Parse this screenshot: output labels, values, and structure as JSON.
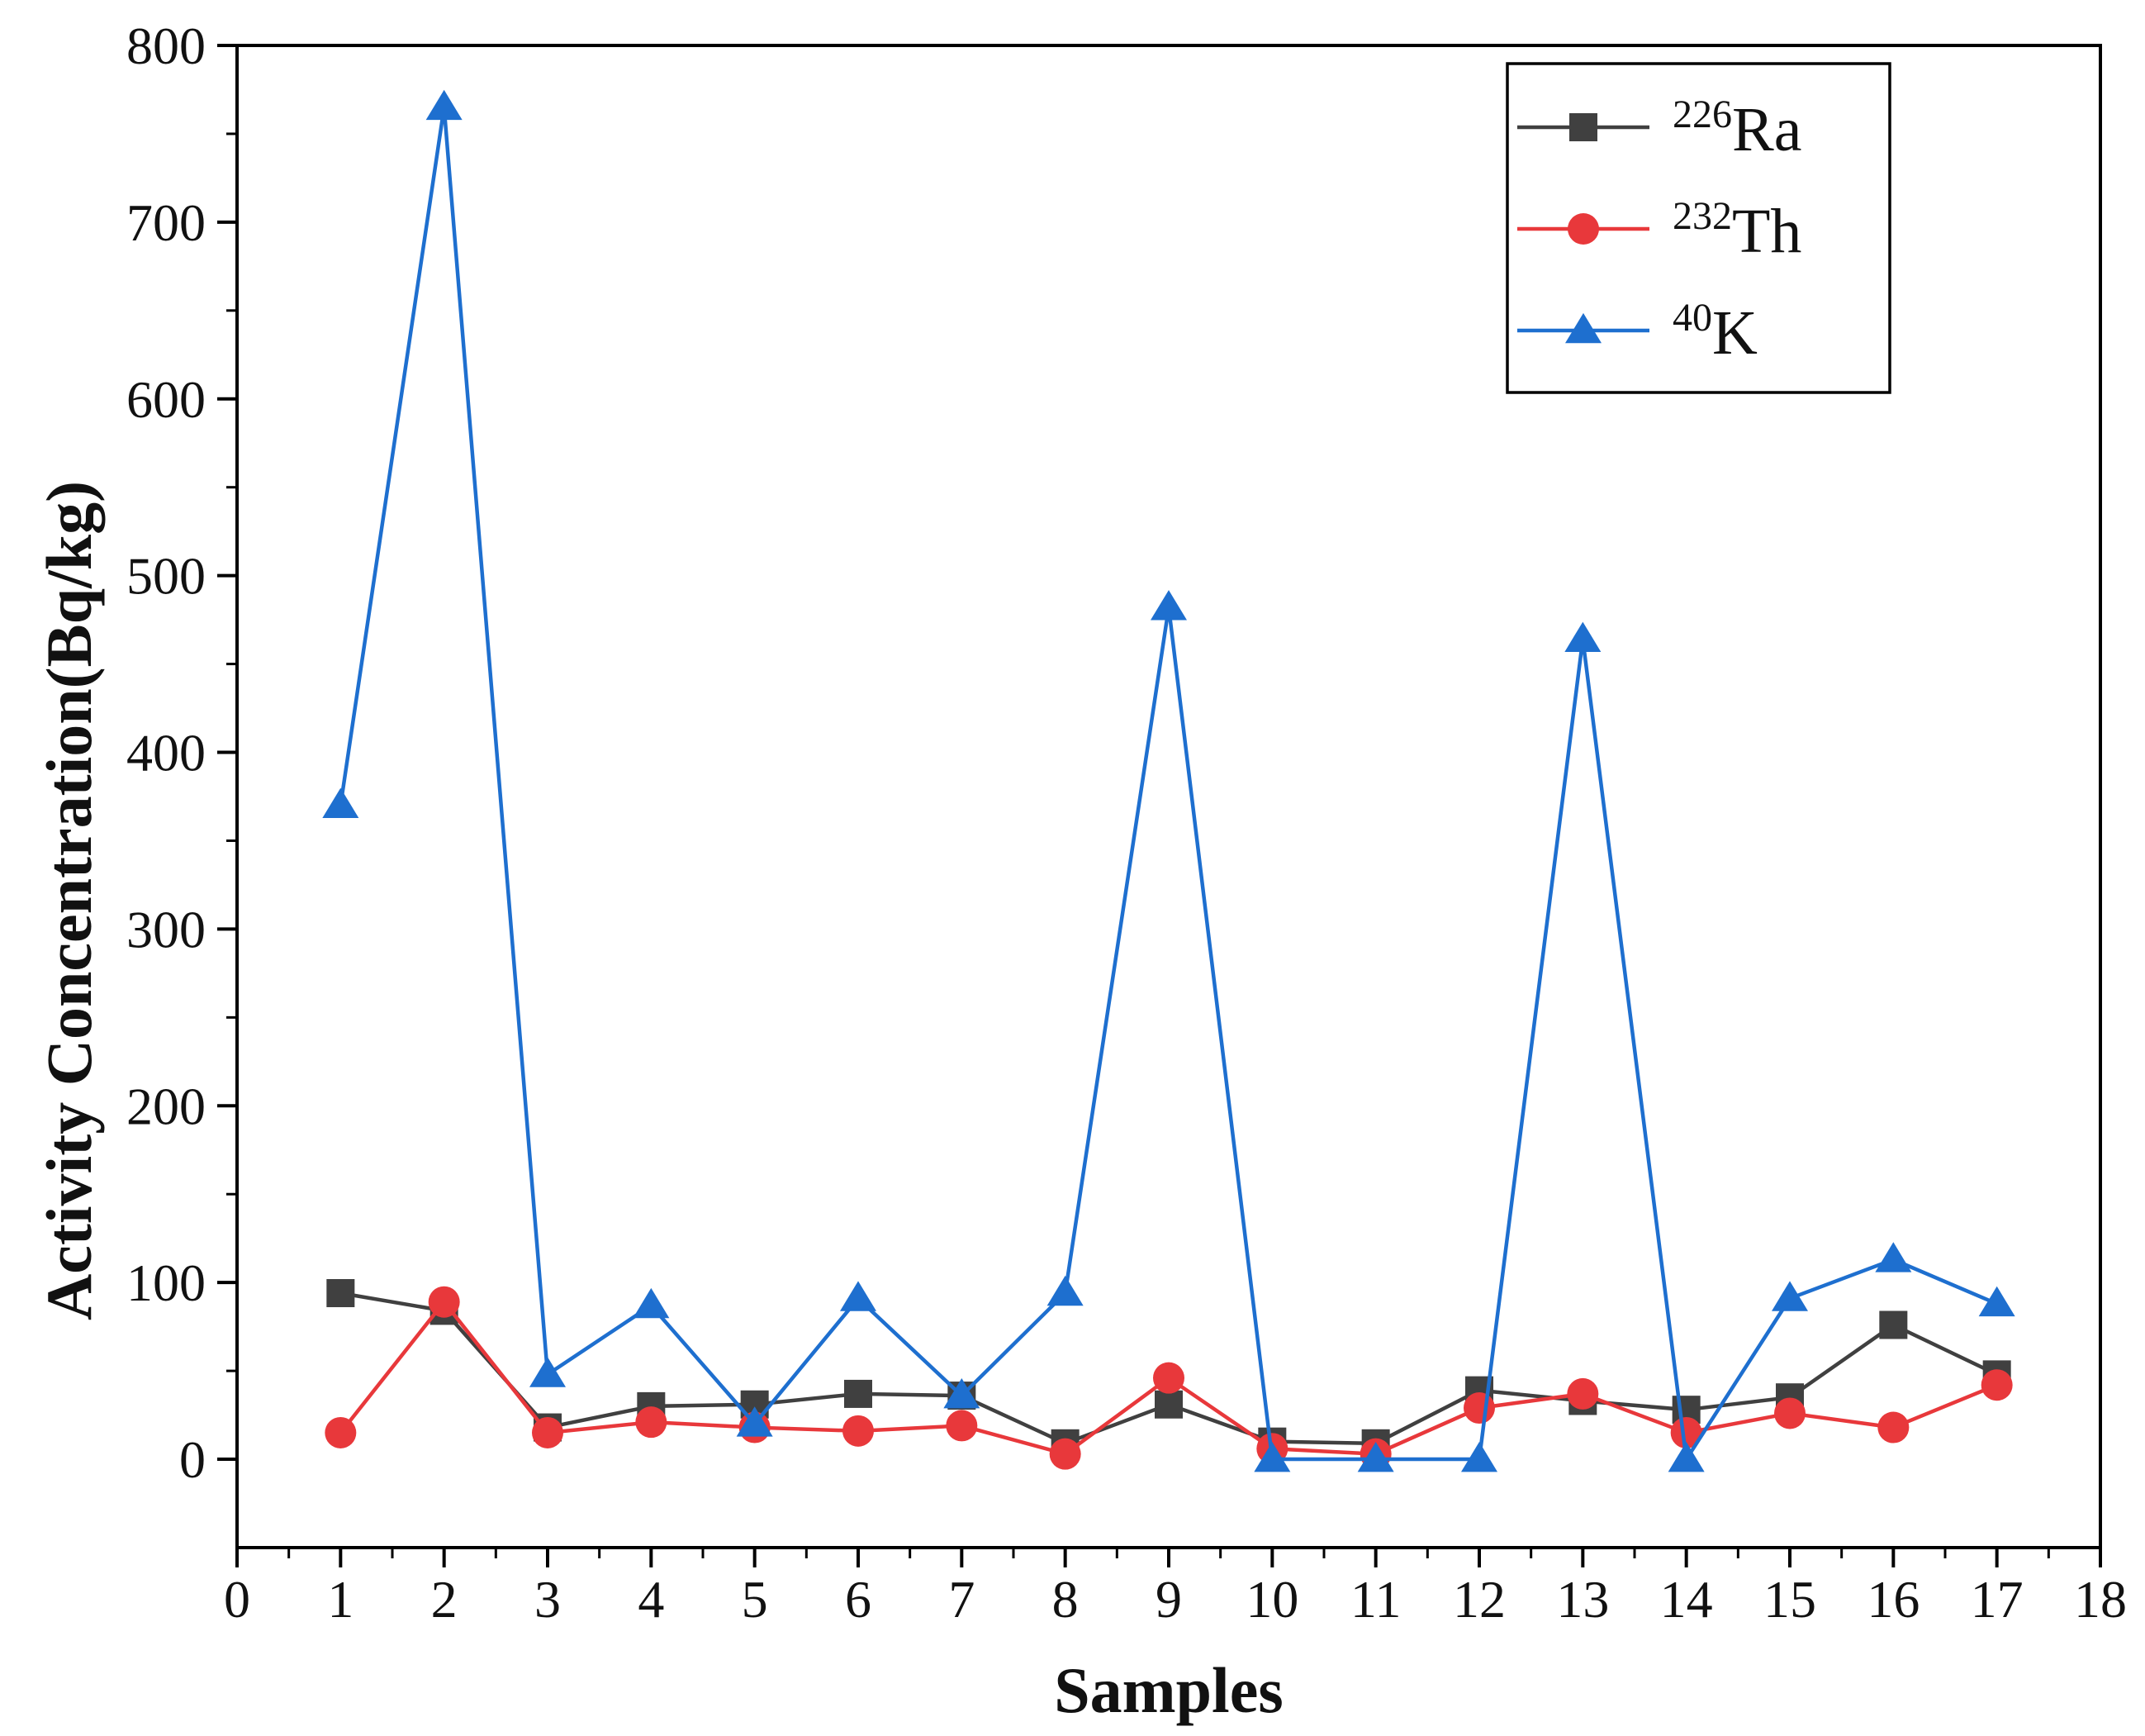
{
  "chart_data": {
    "type": "line",
    "title": "",
    "xlabel": "Samples",
    "ylabel": "Activity Concentration(Bq/kg)",
    "xlim": [
      0,
      18
    ],
    "ylim": [
      -50,
      800
    ],
    "xticks": [
      "0",
      "1",
      "2",
      "3",
      "4",
      "5",
      "6",
      "7",
      "8",
      "9",
      "10",
      "11",
      "12",
      "13",
      "14",
      "15",
      "16",
      "17",
      "18"
    ],
    "yticks": [
      "0",
      "100",
      "200",
      "300",
      "400",
      "500",
      "600",
      "700",
      "800"
    ],
    "grid": false,
    "legend_position": "top-right",
    "x": [
      1,
      2,
      3,
      4,
      5,
      6,
      7,
      8,
      9,
      10,
      11,
      12,
      13,
      14,
      15,
      16,
      17
    ],
    "series": [
      {
        "name": "226Ra",
        "isotope_mass": "226",
        "isotope_symbol": "Ra",
        "color": "#404040",
        "marker": "square",
        "values": [
          94,
          84,
          18,
          30,
          31,
          37,
          36,
          9,
          31,
          10,
          9,
          39,
          33,
          28,
          35,
          76,
          48
        ]
      },
      {
        "name": "232Th",
        "isotope_mass": "232",
        "isotope_symbol": "Th",
        "color": "#e8383b",
        "marker": "circle",
        "values": [
          15,
          89,
          15,
          21,
          18,
          16,
          19,
          3,
          46,
          6,
          3,
          29,
          37,
          15,
          26,
          18,
          42
        ]
      },
      {
        "name": "40K",
        "isotope_mass": "40",
        "isotope_symbol": "K",
        "color": "#1e6fcf",
        "marker": "triangle",
        "values": [
          370,
          765,
          48,
          87,
          20,
          91,
          36,
          94,
          482,
          0,
          0,
          0,
          464,
          0,
          91,
          113,
          88
        ]
      }
    ]
  }
}
